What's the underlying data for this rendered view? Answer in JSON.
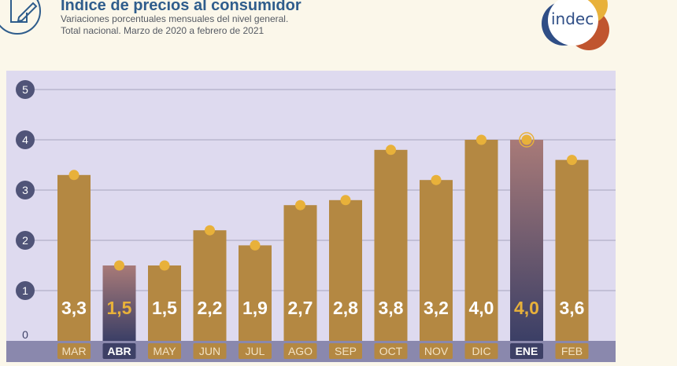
{
  "header": {
    "title": "Indice de precios al consumidor",
    "subtitle_line1": "Variaciones porcentuales mensuales del nivel general.",
    "subtitle_line2": "Total nacional. Marzo de 2020 a febrero de 2021",
    "logo_text": "indec"
  },
  "colors": {
    "background": "#fbf7ea",
    "plot_bg": "#dedaef",
    "bar": "#b48842",
    "bar_highlight_top": "#a87a78",
    "bar_highlight_bottom": "#3b3f66",
    "point": "#e8b13a",
    "axis_circle": "#505478",
    "title": "#2f5d8c"
  },
  "chart_data": {
    "type": "bar",
    "categories": [
      "MAR",
      "ABR",
      "MAY",
      "JUN",
      "JUL",
      "AGO",
      "SEP",
      "OCT",
      "NOV",
      "DIC",
      "ENE",
      "FEB"
    ],
    "values": [
      3.3,
      1.5,
      1.5,
      2.2,
      1.9,
      2.7,
      2.8,
      3.8,
      3.2,
      4.0,
      4.0,
      3.6
    ],
    "value_labels": [
      "3,3",
      "1,5",
      "1,5",
      "2,2",
      "1,9",
      "2,7",
      "2,8",
      "3,8",
      "3,2",
      "4,0",
      "4,0",
      "3,6"
    ],
    "highlighted": [
      "ABR",
      "ENE"
    ],
    "y_ticks": [
      0,
      1,
      2,
      3,
      4,
      5
    ],
    "ylim": [
      0,
      5
    ],
    "grid": true,
    "title": "Indice de precios al consumidor",
    "xlabel": "",
    "ylabel": ""
  }
}
